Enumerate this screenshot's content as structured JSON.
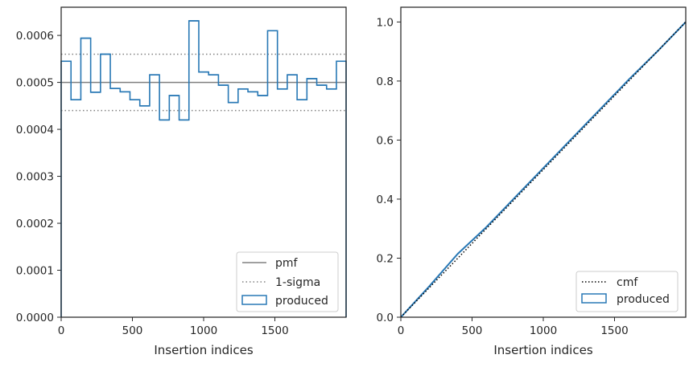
{
  "chart_data": [
    {
      "type": "line",
      "xlabel": "Insertion indices",
      "ylabel": "",
      "xlim": [
        0,
        2000
      ],
      "ylim": [
        0,
        0.00066
      ],
      "xticks": [
        0,
        500,
        1000,
        1500
      ],
      "xtick_labels": [
        "0",
        "500",
        "1000",
        "1500"
      ],
      "yticks": [
        0,
        0.0001,
        0.0002,
        0.0003,
        0.0004,
        0.0005,
        0.0006
      ],
      "ytick_labels": [
        "0.0000",
        "0.0001",
        "0.0002",
        "0.0003",
        "0.0004",
        "0.0005",
        "0.0006"
      ],
      "pmf": 0.0005,
      "sigma_lines": [
        0.00044,
        0.00056
      ],
      "bin_edges": [
        0,
        69,
        138,
        207,
        276,
        345,
        414,
        483,
        552,
        621,
        690,
        759,
        828,
        897,
        966,
        1035,
        1104,
        1173,
        1242,
        1311,
        1380,
        1449,
        1518,
        1587,
        1656,
        1725,
        1794,
        1863,
        1932,
        2000
      ],
      "produced": [
        0.000545,
        0.000463,
        0.000594,
        0.000479,
        0.00056,
        0.000487,
        0.00048,
        0.000463,
        0.00045,
        0.000516,
        0.00042,
        0.000472,
        0.00042,
        0.000631,
        0.000522,
        0.000516,
        0.000494,
        0.000457,
        0.000486,
        0.00048,
        0.000472,
        0.00061,
        0.000486,
        0.000516,
        0.000463,
        0.000508,
        0.000494,
        0.000486,
        0.000545
      ],
      "legend": {
        "position": "lower-right",
        "entries": [
          "pmf",
          "1-sigma",
          "produced"
        ]
      },
      "colors": {
        "pmf": "#808080",
        "sigma": "#808080",
        "produced": "#2878b5"
      }
    },
    {
      "type": "line",
      "xlabel": "Insertion indices",
      "ylabel": "",
      "xlim": [
        0,
        2000
      ],
      "ylim": [
        0,
        1.05
      ],
      "xticks": [
        0,
        500,
        1000,
        1500
      ],
      "xtick_labels": [
        "0",
        "500",
        "1000",
        "1500"
      ],
      "yticks": [
        0,
        0.2,
        0.4,
        0.6,
        0.8,
        1.0
      ],
      "ytick_labels": [
        "0.0",
        "0.2",
        "0.4",
        "0.6",
        "0.8",
        "1.0"
      ],
      "cmf_x": [
        0,
        2000
      ],
      "cmf_y": [
        0,
        1.0
      ],
      "produced_x": [
        0,
        200,
        400,
        600,
        800,
        1000,
        1200,
        1400,
        1600,
        1800,
        2000
      ],
      "produced_y": [
        0,
        0.105,
        0.215,
        0.305,
        0.405,
        0.505,
        0.605,
        0.705,
        0.805,
        0.9,
        1.0
      ],
      "legend": {
        "position": "lower-right",
        "entries": [
          "cmf",
          "produced"
        ]
      },
      "colors": {
        "cmf": "#000000",
        "produced": "#2878b5"
      }
    }
  ]
}
